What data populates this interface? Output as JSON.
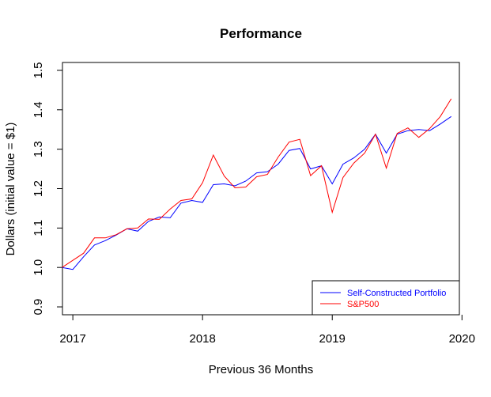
{
  "chart_data": {
    "type": "line",
    "title": "Performance",
    "xlabel": "Previous 36 Months",
    "ylabel": "Dollars (initial value = $1)",
    "xlim": [
      2016.92,
      2019.98
    ],
    "ylim": [
      0.88,
      1.52
    ],
    "x_ticks": [
      2017,
      2018,
      2019,
      2020
    ],
    "x_tick_labels": [
      "2017",
      "2018",
      "2019",
      "2020"
    ],
    "y_ticks": [
      0.9,
      1.0,
      1.1,
      1.2,
      1.3,
      1.4,
      1.5
    ],
    "y_tick_labels": [
      "0.9",
      "1.0",
      "1.1",
      "1.2",
      "1.3",
      "1.4",
      "1.5"
    ],
    "grid": false,
    "legend_position": "bottom-right",
    "x": [
      2016.917,
      2017.0,
      2017.083,
      2017.167,
      2017.25,
      2017.333,
      2017.417,
      2017.5,
      2017.583,
      2017.667,
      2017.75,
      2017.833,
      2017.917,
      2018.0,
      2018.083,
      2018.167,
      2018.25,
      2018.333,
      2018.417,
      2018.5,
      2018.583,
      2018.667,
      2018.75,
      2018.833,
      2018.917,
      2019.0,
      2019.083,
      2019.167,
      2019.25,
      2019.333,
      2019.417,
      2019.5,
      2019.583,
      2019.667,
      2019.75,
      2019.833,
      2019.917
    ],
    "series": [
      {
        "name": "Self-Constructed Portfolio",
        "color": "#0000ff",
        "values": [
          1.0,
          0.995,
          1.027,
          1.057,
          1.068,
          1.082,
          1.098,
          1.092,
          1.117,
          1.128,
          1.126,
          1.163,
          1.17,
          1.165,
          1.21,
          1.212,
          1.207,
          1.219,
          1.24,
          1.243,
          1.262,
          1.297,
          1.302,
          1.25,
          1.258,
          1.212,
          1.262,
          1.278,
          1.3,
          1.338,
          1.29,
          1.338,
          1.347,
          1.35,
          1.347,
          1.364,
          1.383
        ]
      },
      {
        "name": "S&P500",
        "color": "#ff0000",
        "values": [
          1.0,
          1.018,
          1.036,
          1.075,
          1.075,
          1.083,
          1.098,
          1.1,
          1.123,
          1.122,
          1.148,
          1.17,
          1.174,
          1.215,
          1.285,
          1.232,
          1.202,
          1.204,
          1.23,
          1.236,
          1.28,
          1.318,
          1.325,
          1.233,
          1.258,
          1.14,
          1.228,
          1.265,
          1.29,
          1.338,
          1.252,
          1.34,
          1.354,
          1.33,
          1.352,
          1.383,
          1.428
        ]
      }
    ]
  }
}
